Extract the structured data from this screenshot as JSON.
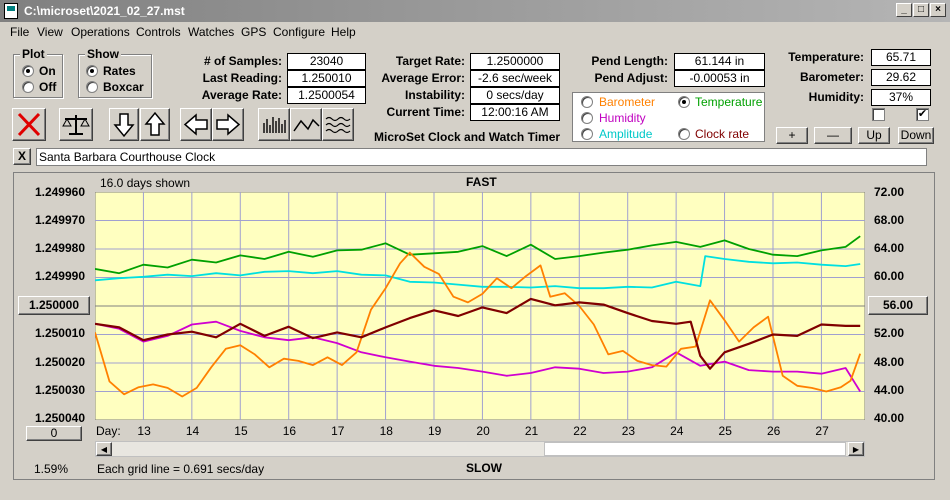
{
  "window": {
    "title": "C:\\microset\\2021_02_27.mst"
  },
  "menu": [
    "File",
    "View",
    "Operations",
    "Controls",
    "Watches",
    "GPS",
    "Configure",
    "Help"
  ],
  "plot_group": {
    "title": "Plot",
    "options": [
      "On",
      "Off"
    ],
    "selected": "On"
  },
  "show_group": {
    "title": "Show",
    "options": [
      "Rates",
      "Boxcar"
    ],
    "selected": "Rates"
  },
  "stats": {
    "samples_label": "# of Samples:",
    "samples": "23040",
    "last_reading_label": "Last Reading:",
    "last_reading": "1.250010",
    "average_rate_label": "Average Rate:",
    "average_rate": "1.2500054",
    "target_rate_label": "Target Rate:",
    "target_rate": "1.2500000",
    "average_error_label": "Average Error:",
    "average_error": "-2.6 sec/week",
    "instability_label": "Instability:",
    "instability": "0 secs/day",
    "current_time_label": "Current Time:",
    "current_time": "12:00:16 AM",
    "pend_length_label": "Pend Length:",
    "pend_length": "61.144 in",
    "pend_adjust_label": "Pend Adjust:",
    "pend_adjust": "-0.00053 in",
    "temperature_label": "Temperature:",
    "temperature": "65.71",
    "barometer_label": "Barometer:",
    "barometer": "29.62",
    "humidity_label": "Humidity:",
    "humidity": "37%"
  },
  "app_caption": "MicroSet Clock and Watch Timer",
  "overlay_legend": {
    "items": [
      {
        "label": "Barometer",
        "color": "#ff8000",
        "selected": false
      },
      {
        "label": "Temperature",
        "color": "#00a000",
        "selected": true
      },
      {
        "label": "Humidity",
        "color": "#c000c0",
        "selected": false
      },
      {
        "label": "Amplitude",
        "color": "#00c8c8",
        "selected": false
      },
      {
        "label": "Clock rate",
        "color": "#800000",
        "selected": false
      }
    ]
  },
  "nav_buttons": {
    "plus": "+",
    "minus": "—",
    "up": "Up",
    "down": "Down"
  },
  "checkboxes": [
    {
      "checked": false
    },
    {
      "checked": true
    }
  ],
  "clock_name": "Santa Barbara Courthouse Clock",
  "close_x": "X",
  "chart_header": {
    "days_shown": "16.0 days shown",
    "fast": "FAST",
    "slow": "SLOW",
    "day_label": "Day:",
    "grid_note": "Each grid line = 0.691 secs/day",
    "percent": "1.59%",
    "zero_button": "0",
    "center_button": "56.00"
  },
  "colors": {
    "chart_bg": "#ffffc0",
    "grid": "#a0a0d0",
    "temperature": "#00a000",
    "amplitude": "#00e0e0",
    "clock_rate": "#800000",
    "barometer": "#ff8000",
    "humidity": "#d000d0"
  },
  "chart_data": {
    "type": "line",
    "x_label": "Day:",
    "x_ticks": [
      "13",
      "14",
      "15",
      "16",
      "17",
      "18",
      "19",
      "20",
      "21",
      "22",
      "23",
      "24",
      "25",
      "26",
      "27"
    ],
    "y_left_ticks": [
      "1.249960",
      "1.249970",
      "1.249980",
      "1.249990",
      "1.250000",
      "1.250010",
      "1.250020",
      "1.250030",
      "1.250040"
    ],
    "y_right_ticks": [
      "72.00",
      "68.00",
      "64.00",
      "60.00",
      "56.00",
      "52.00",
      "48.00",
      "44.00",
      "40.00"
    ],
    "y_left_range": [
      1.24996,
      1.25004
    ],
    "y_right_range": [
      40,
      72
    ],
    "x_range": [
      12.0,
      27.9
    ],
    "series": [
      {
        "name": "Temperature",
        "color": "#00a000",
        "x": [
          12.0,
          12.5,
          13.0,
          13.5,
          14.0,
          14.5,
          15.0,
          15.5,
          16.0,
          16.5,
          17.0,
          17.5,
          18.0,
          18.5,
          19.0,
          19.5,
          20.0,
          20.5,
          21.0,
          21.5,
          22.0,
          22.5,
          23.0,
          23.5,
          24.0,
          24.5,
          25.0,
          25.5,
          26.0,
          26.5,
          27.0,
          27.5,
          27.8
        ],
        "y": [
          61.2,
          60.6,
          61.8,
          61.4,
          62.5,
          62.1,
          63.1,
          62.6,
          63.6,
          62.9,
          63.8,
          63.9,
          64.8,
          63.2,
          63.4,
          63.6,
          64.4,
          63.0,
          64.6,
          62.6,
          63.0,
          63.5,
          63.9,
          64.5,
          65.0,
          64.3,
          65.2,
          64.0,
          63.2,
          63.0,
          63.8,
          64.3,
          65.8
        ]
      },
      {
        "name": "Amplitude",
        "color": "#00e0e0",
        "x": [
          12.0,
          12.5,
          13.0,
          13.5,
          14.0,
          14.5,
          15.0,
          15.5,
          16.0,
          16.5,
          17.0,
          17.5,
          18.0,
          18.5,
          19.0,
          19.5,
          20.0,
          20.5,
          21.0,
          21.5,
          22.0,
          22.5,
          23.0,
          23.5,
          24.0,
          24.5,
          24.6,
          25.0,
          25.5,
          26.0,
          26.5,
          27.0,
          27.5,
          27.8
        ],
        "y": [
          59.6,
          59.9,
          60.1,
          60.4,
          60.2,
          60.6,
          60.3,
          60.8,
          60.9,
          60.6,
          60.9,
          60.4,
          60.3,
          59.4,
          59.3,
          59.0,
          58.7,
          58.7,
          58.6,
          58.8,
          58.5,
          58.5,
          58.7,
          58.6,
          59.4,
          58.8,
          63.0,
          62.6,
          62.2,
          62.0,
          62.1,
          61.8,
          61.6,
          61.9
        ]
      },
      {
        "name": "Clock rate",
        "color": "#800000",
        "x": [
          12.0,
          12.5,
          13.0,
          13.5,
          14.0,
          14.5,
          15.0,
          15.5,
          16.0,
          16.5,
          17.0,
          17.5,
          18.0,
          18.5,
          19.0,
          19.5,
          20.0,
          20.5,
          21.0,
          21.5,
          22.0,
          22.5,
          23.0,
          23.5,
          24.0,
          24.3,
          24.5,
          24.7,
          25.0,
          25.5,
          26.0,
          26.5,
          27.0,
          27.5,
          27.8
        ],
        "y": [
          53.5,
          53.0,
          51.2,
          52.0,
          52.4,
          51.6,
          53.5,
          51.8,
          53.1,
          51.5,
          52.3,
          51.6,
          53.0,
          54.3,
          55.4,
          54.6,
          55.8,
          55.0,
          57.0,
          56.1,
          56.5,
          56.2,
          55.0,
          53.9,
          53.5,
          53.8,
          49.0,
          47.2,
          49.5,
          50.7,
          52.0,
          51.8,
          53.4,
          53.2,
          53.2
        ]
      },
      {
        "name": "Barometer",
        "color": "#ff8000",
        "x": [
          12.0,
          12.3,
          12.6,
          12.9,
          13.2,
          13.5,
          13.8,
          14.1,
          14.4,
          14.7,
          15.0,
          15.3,
          15.6,
          15.9,
          16.2,
          16.5,
          16.8,
          17.1,
          17.4,
          17.7,
          18.0,
          18.3,
          18.5,
          18.8,
          19.1,
          19.4,
          19.7,
          20.0,
          20.3,
          20.6,
          20.9,
          21.2,
          21.4,
          21.7,
          22.0,
          22.3,
          22.6,
          22.9,
          23.2,
          23.5,
          23.8,
          24.1,
          24.4,
          24.7,
          25.0,
          25.3,
          25.6,
          25.9,
          26.2,
          26.5,
          26.8,
          27.1,
          27.4,
          27.6,
          27.8
        ],
        "y": [
          52.3,
          45.4,
          43.6,
          44.6,
          45.0,
          44.5,
          43.3,
          44.5,
          47.4,
          50.0,
          50.5,
          49.2,
          47.4,
          48.6,
          48.3,
          47.7,
          48.8,
          47.7,
          49.5,
          55.5,
          58.5,
          62.0,
          63.5,
          61.5,
          60.5,
          57.3,
          56.5,
          57.7,
          59.9,
          58.5,
          60.2,
          61.7,
          57.3,
          57.8,
          56.0,
          53.4,
          49.2,
          49.7,
          48.3,
          47.7,
          47.5,
          50.0,
          50.3,
          56.8,
          54.0,
          51.0,
          53.0,
          54.5,
          46.2,
          44.8,
          44.5,
          44.0,
          44.6,
          45.5,
          49.3
        ]
      },
      {
        "name": "Humidity",
        "color": "#d000d0",
        "x": [
          12.0,
          12.5,
          13.0,
          13.5,
          14.0,
          14.5,
          15.0,
          15.5,
          16.0,
          16.5,
          17.0,
          17.5,
          18.0,
          18.5,
          19.0,
          19.5,
          20.0,
          20.5,
          21.0,
          21.5,
          22.0,
          22.5,
          23.0,
          23.5,
          24.0,
          24.5,
          25.0,
          25.5,
          26.0,
          26.5,
          27.0,
          27.5,
          27.8
        ],
        "y": [
          53.5,
          52.8,
          51.0,
          51.8,
          53.4,
          53.8,
          52.5,
          51.6,
          51.2,
          51.6,
          50.8,
          49.5,
          48.8,
          48.2,
          47.6,
          47.3,
          46.8,
          46.2,
          46.6,
          47.4,
          47.2,
          46.6,
          46.8,
          47.4,
          49.5,
          47.6,
          48.2,
          47.0,
          46.8,
          46.8,
          46.5,
          47.3,
          44.0
        ]
      }
    ]
  }
}
